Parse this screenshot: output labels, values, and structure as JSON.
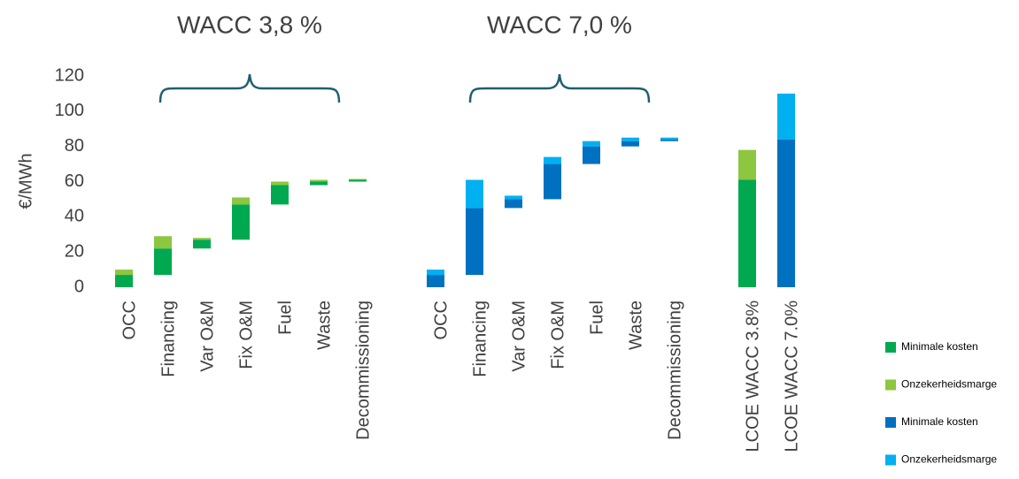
{
  "chart_data": {
    "type": "waterfall",
    "annotations": [
      "WACC 3,8 %",
      "WACC 7,0 %"
    ],
    "ylabel": "€/MWh",
    "ylim": [
      0,
      120
    ],
    "yticks": [
      0,
      20,
      40,
      60,
      80,
      100,
      120
    ],
    "categories": [
      "OCC",
      "Financing",
      "Var O&M",
      "Fix O&M",
      "Fuel",
      "Waste",
      "Decommissioning",
      null,
      "OCC",
      "Financing",
      "Var O&M",
      "Fix O&M",
      "Fuel",
      "Waste",
      "Decommissioning",
      null,
      "LCOE WACC 3.8%",
      "LCOE WACC 7.0%"
    ],
    "series": [
      {
        "name": "Minimale kosten",
        "color": "#00a94f",
        "role": "base",
        "values": [
          7,
          15,
          5,
          20,
          11,
          2,
          1,
          null,
          null,
          null,
          null,
          null,
          null,
          null,
          null,
          null,
          61,
          null
        ]
      },
      {
        "name": "Onzekerheidsmarge",
        "color": "#8dc63f",
        "role": "margin",
        "values": [
          3,
          7,
          1,
          4,
          2,
          1,
          0.5,
          null,
          null,
          null,
          null,
          null,
          null,
          null,
          null,
          null,
          17,
          null
        ]
      },
      {
        "name": "Minimale kosten",
        "color": "#0070c0",
        "role": "base",
        "values": [
          null,
          null,
          null,
          null,
          null,
          null,
          null,
          null,
          7,
          38,
          5,
          20,
          10,
          3,
          1,
          null,
          null,
          84
        ]
      },
      {
        "name": "Onzekerheidsmarge",
        "color": "#00b0f0",
        "role": "margin",
        "values": [
          null,
          null,
          null,
          null,
          null,
          null,
          null,
          null,
          3,
          16,
          2,
          4,
          3,
          2,
          1,
          null,
          null,
          26
        ]
      }
    ]
  }
}
